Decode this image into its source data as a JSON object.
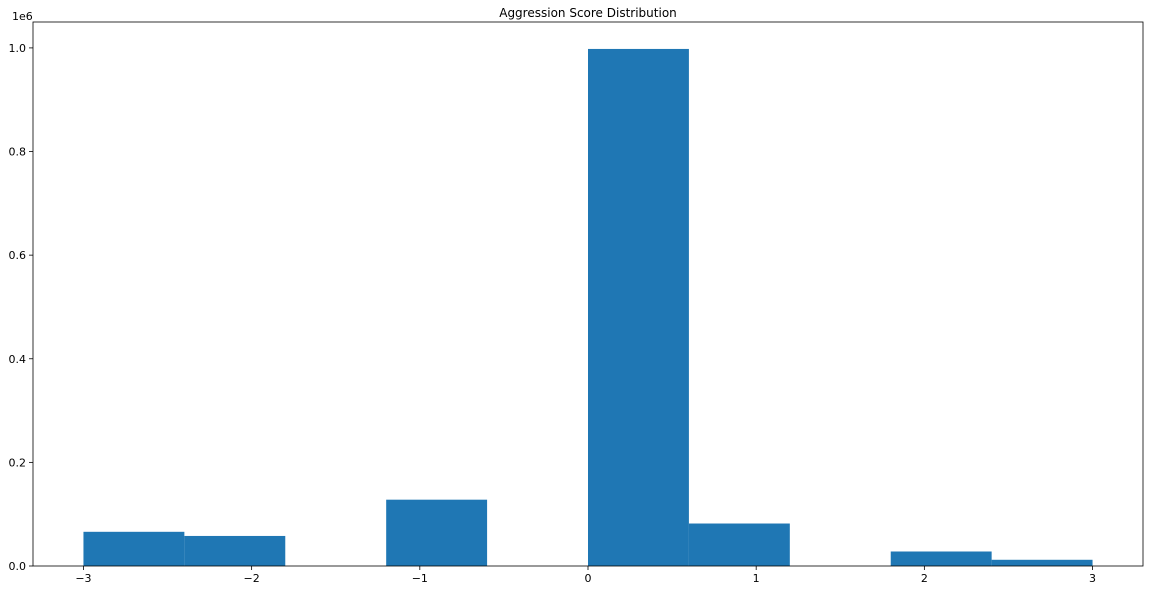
{
  "chart_data": {
    "type": "bar",
    "title": "Aggression Score Distribution",
    "xlabel": "",
    "ylabel": "",
    "y_offset_label": "1e6",
    "xlim": [
      -3.3,
      3.3
    ],
    "ylim": [
      0,
      1.05
    ],
    "x_ticks": [
      -3,
      -2,
      -1,
      0,
      1,
      2,
      3
    ],
    "x_tick_labels": [
      "−3",
      "−2",
      "−1",
      "0",
      "1",
      "2",
      "3"
    ],
    "y_ticks": [
      0.0,
      0.2,
      0.4,
      0.6,
      0.8,
      1.0
    ],
    "y_tick_labels": [
      "0.0",
      "0.2",
      "0.4",
      "0.6",
      "0.8",
      "1.0"
    ],
    "bin_edges": [
      -3.0,
      -2.4,
      -1.8,
      -1.2,
      -0.6,
      0.0,
      0.6,
      1.2,
      1.8,
      2.4,
      3.0
    ],
    "values": [
      0.066,
      0.058,
      0.0,
      0.128,
      0.0,
      0.998,
      0.082,
      0.0,
      0.028,
      0.012
    ],
    "bar_color": "#1f77b4",
    "grid": false,
    "legend": "none"
  }
}
